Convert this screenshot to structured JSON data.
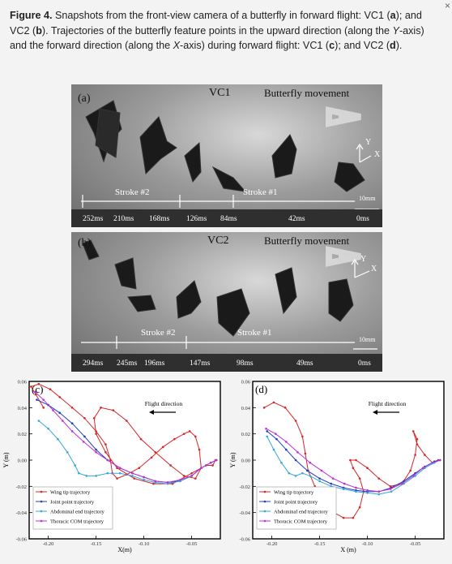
{
  "caption": {
    "figure_label": "Figure 4.",
    "lead": " Snapshots from the front-view camera of a butterfly in forward flight: VC1 (",
    "a1": "a",
    "mid1": "); and VC2 (",
    "b1": "b",
    "mid2": "). Trajectories of the butterfly feature points in the upward direction (along the ",
    "yaxis": "Y",
    "mid3": "-axis) and the forward direction (along the ",
    "xaxis": "X",
    "mid4": "-axis) during forward flight: VC1 (",
    "c1": "c",
    "mid5": "); and VC2 (",
    "d1": "d",
    "end": ")."
  },
  "close_glyph": "×",
  "panel_a": {
    "tag": "(a)",
    "camera": "VC1",
    "movement": "Butterfly movement",
    "stroke2": "Stroke #2",
    "stroke1": "Stroke #1",
    "scale": "10mm",
    "axis_y": "Y",
    "axis_x": "X",
    "times": [
      "252ms",
      "210ms",
      "168ms",
      "126ms",
      "84ms",
      "42ms",
      "0ms"
    ]
  },
  "panel_b": {
    "tag": "(b)",
    "camera": "VC2",
    "movement": "Butterfly movement",
    "stroke2": "Stroke #2",
    "stroke1": "Stroke #1",
    "scale": "10mm",
    "axis_y": "Y",
    "axis_x": "X",
    "times": [
      "294ms",
      "245ms",
      "196ms",
      "147ms",
      "98ms",
      "49ms",
      "0ms"
    ]
  },
  "colors": {
    "wing": "#d62728",
    "joint": "#1f3fbf",
    "abdominal": "#33a8d6",
    "thoracic": "#c030d8",
    "arrow": "#ffffff"
  },
  "chart_data": [
    {
      "type": "line",
      "panel": "(c)",
      "annotation": "Flight direction",
      "xlabel": "X(m)",
      "ylabel": "Y (m)",
      "xlim": [
        -0.22,
        -0.02
      ],
      "ylim": [
        -0.06,
        0.06
      ],
      "xticks": [
        "-0.20",
        "-0.15",
        "-0.10",
        "-0.05"
      ],
      "yticks": [
        "0.06",
        "0.04",
        "0.02",
        "0.00",
        "-0.02",
        "-0.04",
        "-0.06"
      ],
      "legend_position": "lower-left",
      "grid": false,
      "series": [
        {
          "name": "Wing tip trajectory",
          "color": "#d62728",
          "x": [
            -0.205,
            -0.213,
            -0.218,
            -0.21,
            -0.198,
            -0.188,
            -0.175,
            -0.162,
            -0.15,
            -0.14,
            -0.135,
            -0.133,
            -0.128,
            -0.118,
            -0.105,
            -0.092,
            -0.08,
            -0.068,
            -0.058,
            -0.052,
            -0.046,
            -0.042,
            -0.04,
            -0.046,
            -0.058,
            -0.072,
            -0.088,
            -0.103,
            -0.118,
            -0.132,
            -0.145,
            -0.152,
            -0.15,
            -0.14,
            -0.128,
            -0.11,
            -0.09,
            -0.07,
            -0.05,
            -0.035,
            -0.028,
            -0.025
          ],
          "y": [
            0.04,
            0.05,
            0.056,
            0.058,
            0.054,
            0.048,
            0.04,
            0.032,
            0.022,
            0.012,
            0.0,
            -0.01,
            -0.014,
            -0.011,
            -0.006,
            0.002,
            0.01,
            0.016,
            0.02,
            0.022,
            0.018,
            0.008,
            -0.006,
            -0.014,
            -0.012,
            -0.004,
            0.006,
            0.016,
            0.03,
            0.038,
            0.04,
            0.032,
            0.02,
            0.006,
            -0.006,
            -0.014,
            -0.018,
            -0.018,
            -0.01,
            -0.004,
            -0.004,
            0.0
          ]
        },
        {
          "name": "Joint point trajectory",
          "color": "#1f3fbf",
          "x": [
            -0.212,
            -0.2,
            -0.188,
            -0.175,
            -0.162,
            -0.15,
            -0.138,
            -0.125,
            -0.112,
            -0.1,
            -0.088,
            -0.075,
            -0.062,
            -0.05,
            -0.04,
            -0.03,
            -0.024
          ],
          "y": [
            0.046,
            0.042,
            0.036,
            0.028,
            0.018,
            0.008,
            0.0,
            -0.006,
            -0.01,
            -0.013,
            -0.016,
            -0.017,
            -0.016,
            -0.012,
            -0.006,
            -0.002,
            0.0
          ]
        },
        {
          "name": "Abdominal end trajectory",
          "color": "#33a8d6",
          "x": [
            -0.21,
            -0.2,
            -0.19,
            -0.18,
            -0.172,
            -0.168,
            -0.16,
            -0.15,
            -0.138,
            -0.125,
            -0.112,
            -0.1,
            -0.088,
            -0.075,
            -0.062,
            -0.05,
            -0.04,
            -0.03,
            -0.024
          ],
          "y": [
            0.03,
            0.024,
            0.016,
            0.006,
            -0.004,
            -0.01,
            -0.012,
            -0.012,
            -0.01,
            -0.01,
            -0.012,
            -0.015,
            -0.017,
            -0.018,
            -0.016,
            -0.012,
            -0.006,
            -0.002,
            0.0
          ]
        },
        {
          "name": "Thoracic COM trajectory",
          "color": "#c030d8",
          "x": [
            -0.214,
            -0.205,
            -0.195,
            -0.185,
            -0.175,
            -0.163,
            -0.15,
            -0.138,
            -0.125,
            -0.112,
            -0.1,
            -0.088,
            -0.075,
            -0.062,
            -0.05,
            -0.04,
            -0.03,
            -0.024
          ],
          "y": [
            0.052,
            0.046,
            0.038,
            0.03,
            0.022,
            0.014,
            0.006,
            0.0,
            -0.006,
            -0.01,
            -0.013,
            -0.016,
            -0.017,
            -0.015,
            -0.012,
            -0.006,
            -0.002,
            0.0
          ]
        }
      ]
    },
    {
      "type": "line",
      "panel": "(d)",
      "annotation": "Flight direction",
      "xlabel": "X (m)",
      "ylabel": "Y (m)",
      "xlim": [
        -0.22,
        -0.02
      ],
      "ylim": [
        -0.06,
        0.06
      ],
      "xticks": [
        "-0.20",
        "-0.15",
        "-0.10",
        "-0.05"
      ],
      "yticks": [
        "0.06",
        "0.04",
        "0.02",
        "0.00",
        "-0.02",
        "-0.04",
        "-0.06"
      ],
      "legend_position": "lower-left",
      "grid": false,
      "series": [
        {
          "name": "Wing tip trajectory",
          "color": "#d62728",
          "x": [
            -0.208,
            -0.198,
            -0.186,
            -0.175,
            -0.168,
            -0.165,
            -0.162,
            -0.155,
            -0.145,
            -0.135,
            -0.125,
            -0.115,
            -0.108,
            -0.104,
            -0.108,
            -0.115,
            -0.118,
            -0.112,
            -0.1,
            -0.088,
            -0.076,
            -0.064,
            -0.055,
            -0.05,
            -0.048,
            -0.052,
            -0.048,
            -0.04,
            -0.032,
            -0.026
          ],
          "y": [
            0.04,
            0.044,
            0.04,
            0.03,
            0.018,
            0.005,
            -0.008,
            -0.02,
            -0.032,
            -0.04,
            -0.044,
            -0.044,
            -0.036,
            -0.024,
            -0.014,
            -0.006,
            0.0,
            0.0,
            -0.006,
            -0.014,
            -0.02,
            -0.018,
            -0.008,
            0.004,
            0.016,
            0.022,
            0.012,
            0.004,
            -0.002,
            0.0
          ]
        },
        {
          "name": "Joint point trajectory",
          "color": "#1f3fbf",
          "x": [
            -0.205,
            -0.195,
            -0.185,
            -0.175,
            -0.163,
            -0.15,
            -0.138,
            -0.125,
            -0.112,
            -0.1,
            -0.088,
            -0.075,
            -0.062,
            -0.05,
            -0.04,
            -0.03,
            -0.024
          ],
          "y": [
            0.022,
            0.016,
            0.008,
            0.0,
            -0.008,
            -0.014,
            -0.018,
            -0.021,
            -0.023,
            -0.024,
            -0.024,
            -0.021,
            -0.016,
            -0.01,
            -0.005,
            -0.001,
            0.0
          ]
        },
        {
          "name": "Abdominal end trajectory",
          "color": "#33a8d6",
          "x": [
            -0.205,
            -0.198,
            -0.19,
            -0.182,
            -0.175,
            -0.168,
            -0.16,
            -0.15,
            -0.138,
            -0.125,
            -0.112,
            -0.1,
            -0.088,
            -0.075,
            -0.062,
            -0.05,
            -0.04,
            -0.03,
            -0.024
          ],
          "y": [
            0.018,
            0.008,
            -0.002,
            -0.01,
            -0.012,
            -0.01,
            -0.012,
            -0.016,
            -0.02,
            -0.022,
            -0.024,
            -0.025,
            -0.026,
            -0.024,
            -0.018,
            -0.012,
            -0.006,
            -0.002,
            0.0
          ]
        },
        {
          "name": "Thoracic COM trajectory",
          "color": "#c030d8",
          "x": [
            -0.206,
            -0.196,
            -0.185,
            -0.173,
            -0.16,
            -0.148,
            -0.136,
            -0.124,
            -0.112,
            -0.1,
            -0.088,
            -0.076,
            -0.064,
            -0.052,
            -0.042,
            -0.032,
            -0.024
          ],
          "y": [
            0.024,
            0.02,
            0.014,
            0.006,
            -0.002,
            -0.008,
            -0.014,
            -0.018,
            -0.021,
            -0.023,
            -0.024,
            -0.022,
            -0.018,
            -0.012,
            -0.006,
            -0.002,
            0.0
          ]
        }
      ]
    }
  ]
}
